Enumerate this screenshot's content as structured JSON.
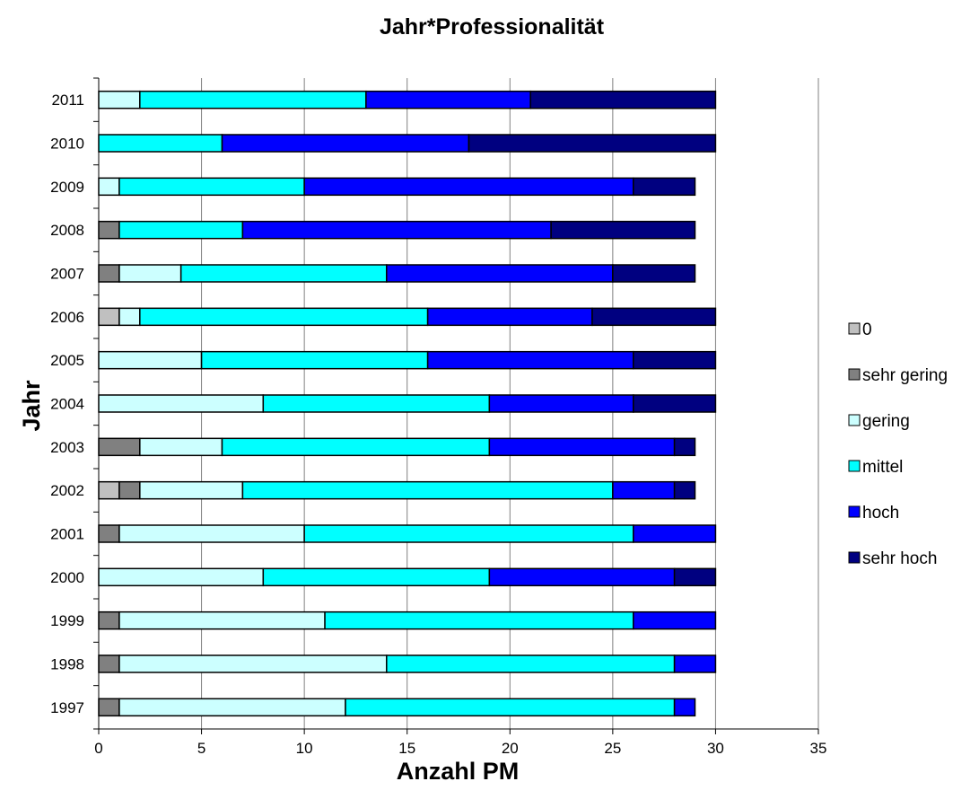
{
  "chart_data": {
    "type": "bar",
    "orientation": "horizontal",
    "stacked": true,
    "title": "Jahr*Professionalität",
    "xlabel": "Anzahl PM",
    "ylabel": "Jahr",
    "xlim": [
      0,
      35
    ],
    "xticks": [
      0,
      5,
      10,
      15,
      20,
      25,
      30,
      35
    ],
    "grid": "vertical",
    "legend_position": "right",
    "categories": [
      "1997",
      "1998",
      "1999",
      "2000",
      "2001",
      "2002",
      "2003",
      "2004",
      "2005",
      "2006",
      "2007",
      "2008",
      "2009",
      "2010",
      "2011"
    ],
    "series": [
      {
        "name": "0",
        "color": "#c0c0c0",
        "values": [
          0,
          0,
          0,
          0,
          0,
          1,
          0,
          0,
          0,
          1,
          0,
          0,
          0,
          0,
          0
        ]
      },
      {
        "name": "sehr gering",
        "color": "#808080",
        "values": [
          1,
          1,
          1,
          0,
          1,
          1,
          2,
          0,
          0,
          0,
          1,
          1,
          0,
          0,
          0
        ]
      },
      {
        "name": "gering",
        "color": "#ccffff",
        "values": [
          11,
          13,
          10,
          8,
          9,
          5,
          4,
          8,
          5,
          1,
          3,
          0,
          1,
          0,
          2
        ]
      },
      {
        "name": "mittel",
        "color": "#00ffff",
        "values": [
          16,
          14,
          15,
          11,
          16,
          18,
          13,
          11,
          11,
          14,
          10,
          6,
          9,
          6,
          11
        ]
      },
      {
        "name": "hoch",
        "color": "#0000ff",
        "values": [
          1,
          2,
          4,
          9,
          4,
          3,
          9,
          7,
          10,
          8,
          11,
          15,
          16,
          12,
          8
        ]
      },
      {
        "name": "sehr hoch",
        "color": "#000080",
        "values": [
          0,
          0,
          0,
          2,
          0,
          1,
          1,
          4,
          4,
          6,
          4,
          7,
          3,
          12,
          9
        ]
      }
    ]
  }
}
